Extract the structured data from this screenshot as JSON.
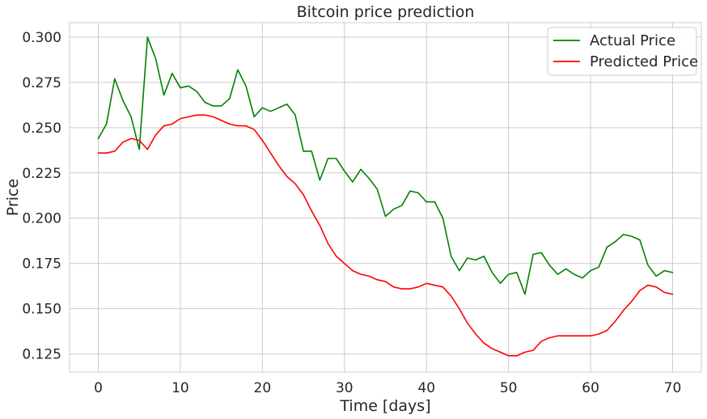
{
  "chart_data": {
    "type": "line",
    "title": "Bitcoin price prediction",
    "xlabel": "Time [days]",
    "ylabel": "Price",
    "xlim": [
      -3.5,
      73.5
    ],
    "ylim": [
      0.115,
      0.308
    ],
    "xticks": [
      0,
      10,
      20,
      30,
      40,
      50,
      60,
      70
    ],
    "xtick_labels": [
      "0",
      "10",
      "20",
      "30",
      "40",
      "50",
      "60",
      "70"
    ],
    "yticks": [
      0.125,
      0.15,
      0.175,
      0.2,
      0.225,
      0.25,
      0.275,
      0.3
    ],
    "ytick_labels": [
      "0.125",
      "0.150",
      "0.175",
      "0.200",
      "0.225",
      "0.250",
      "0.275",
      "0.300"
    ],
    "grid": true,
    "legend_position": "top-right",
    "series": [
      {
        "name": "Actual Price",
        "color": "#008000",
        "values": [
          0.244,
          0.252,
          0.277,
          0.265,
          0.256,
          0.238,
          0.3,
          0.288,
          0.268,
          0.28,
          0.272,
          0.273,
          0.27,
          0.264,
          0.262,
          0.262,
          0.266,
          0.282,
          0.273,
          0.256,
          0.261,
          0.259,
          0.261,
          0.263,
          0.257,
          0.237,
          0.237,
          0.221,
          0.233,
          0.233,
          0.226,
          0.22,
          0.227,
          0.222,
          0.216,
          0.201,
          0.205,
          0.207,
          0.215,
          0.214,
          0.209,
          0.209,
          0.2,
          0.179,
          0.171,
          0.178,
          0.177,
          0.179,
          0.17,
          0.164,
          0.169,
          0.17,
          0.158,
          0.18,
          0.181,
          0.174,
          0.169,
          0.172,
          0.169,
          0.167,
          0.171,
          0.173,
          0.184,
          0.187,
          0.191,
          0.19,
          0.188,
          0.174,
          0.168,
          0.171,
          0.17
        ]
      },
      {
        "name": "Predicted Price",
        "color": "#ff0000",
        "values": [
          0.236,
          0.236,
          0.237,
          0.242,
          0.244,
          0.243,
          0.238,
          0.246,
          0.251,
          0.252,
          0.255,
          0.256,
          0.257,
          0.257,
          0.256,
          0.254,
          0.252,
          0.251,
          0.251,
          0.249,
          0.243,
          0.236,
          0.229,
          0.223,
          0.219,
          0.213,
          0.204,
          0.196,
          0.186,
          0.179,
          0.175,
          0.171,
          0.169,
          0.168,
          0.166,
          0.165,
          0.162,
          0.161,
          0.161,
          0.162,
          0.164,
          0.163,
          0.162,
          0.157,
          0.15,
          0.142,
          0.136,
          0.131,
          0.128,
          0.126,
          0.124,
          0.124,
          0.126,
          0.127,
          0.132,
          0.134,
          0.135,
          0.135,
          0.135,
          0.135,
          0.135,
          0.136,
          0.138,
          0.143,
          0.149,
          0.154,
          0.16,
          0.163,
          0.162,
          0.159,
          0.158
        ]
      }
    ]
  }
}
